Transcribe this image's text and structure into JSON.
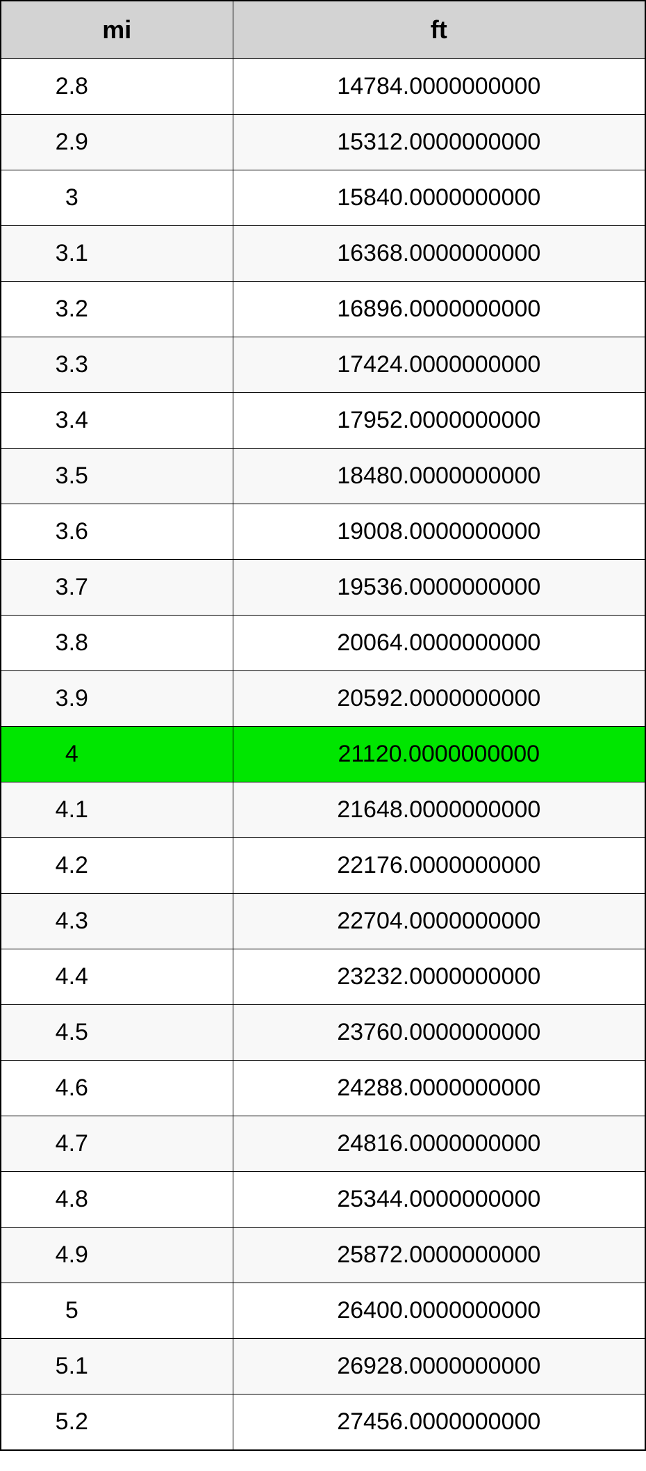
{
  "table": {
    "type": "table",
    "header_background": "#d3d3d3",
    "border_color": "#000000",
    "row_even_background": "#ffffff",
    "row_odd_background": "#f8f8f8",
    "highlight_background": "#00e600",
    "header_fontsize": 36,
    "cell_fontsize": 34,
    "columns": [
      {
        "key": "mi",
        "label": "mi",
        "align": "center"
      },
      {
        "key": "ft",
        "label": "ft",
        "align": "center"
      }
    ],
    "highlighted_row_index": 12,
    "rows": [
      {
        "mi": "2.8",
        "ft": "14784.0000000000"
      },
      {
        "mi": "2.9",
        "ft": "15312.0000000000"
      },
      {
        "mi": "3",
        "ft": "15840.0000000000"
      },
      {
        "mi": "3.1",
        "ft": "16368.0000000000"
      },
      {
        "mi": "3.2",
        "ft": "16896.0000000000"
      },
      {
        "mi": "3.3",
        "ft": "17424.0000000000"
      },
      {
        "mi": "3.4",
        "ft": "17952.0000000000"
      },
      {
        "mi": "3.5",
        "ft": "18480.0000000000"
      },
      {
        "mi": "3.6",
        "ft": "19008.0000000000"
      },
      {
        "mi": "3.7",
        "ft": "19536.0000000000"
      },
      {
        "mi": "3.8",
        "ft": "20064.0000000000"
      },
      {
        "mi": "3.9",
        "ft": "20592.0000000000"
      },
      {
        "mi": "4",
        "ft": "21120.0000000000"
      },
      {
        "mi": "4.1",
        "ft": "21648.0000000000"
      },
      {
        "mi": "4.2",
        "ft": "22176.0000000000"
      },
      {
        "mi": "4.3",
        "ft": "22704.0000000000"
      },
      {
        "mi": "4.4",
        "ft": "23232.0000000000"
      },
      {
        "mi": "4.5",
        "ft": "23760.0000000000"
      },
      {
        "mi": "4.6",
        "ft": "24288.0000000000"
      },
      {
        "mi": "4.7",
        "ft": "24816.0000000000"
      },
      {
        "mi": "4.8",
        "ft": "25344.0000000000"
      },
      {
        "mi": "4.9",
        "ft": "25872.0000000000"
      },
      {
        "mi": "5",
        "ft": "26400.0000000000"
      },
      {
        "mi": "5.1",
        "ft": "26928.0000000000"
      },
      {
        "mi": "5.2",
        "ft": "27456.0000000000"
      }
    ]
  }
}
